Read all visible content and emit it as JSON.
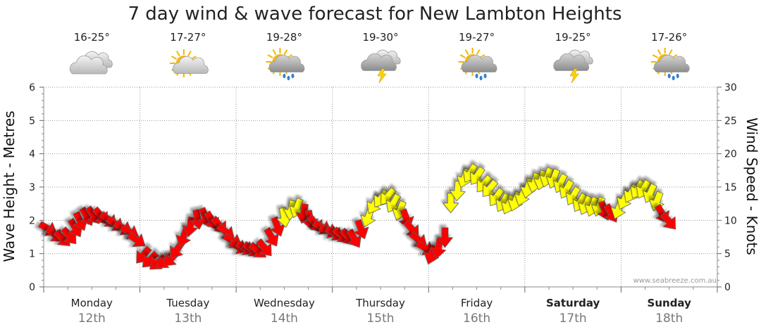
{
  "chart_data": {
    "type": "line",
    "title": "7 day wind & wave forecast for New Lambton Heights",
    "ylabel": "Wave Height - Metres",
    "ylabel_right": "Wind Speed - Knots",
    "ylim": [
      0,
      6
    ],
    "ylim_right": [
      0,
      30
    ],
    "yticks": [
      "0",
      "1",
      "2",
      "3",
      "4",
      "5",
      "6"
    ],
    "yticks_right": [
      "0",
      "5",
      "10",
      "15",
      "20",
      "25",
      "30"
    ],
    "watermark": "www.seabreeze.com.au",
    "days": [
      {
        "name": "Monday",
        "date": "12th",
        "temp": "16-25°",
        "weather": "cloudy",
        "weekend": false
      },
      {
        "name": "Tuesday",
        "date": "13th",
        "temp": "17-27°",
        "weather": "partly-cloudy",
        "weekend": false
      },
      {
        "name": "Wednesday",
        "date": "14th",
        "temp": "19-28°",
        "weather": "shower",
        "weekend": false
      },
      {
        "name": "Thursday",
        "date": "15th",
        "temp": "19-30°",
        "weather": "storm",
        "weekend": false
      },
      {
        "name": "Friday",
        "date": "16th",
        "temp": "19-27°",
        "weather": "shower",
        "weekend": false
      },
      {
        "name": "Saturday",
        "date": "17th",
        "temp": "19-25°",
        "weather": "storm",
        "weekend": true
      },
      {
        "name": "Sunday",
        "date": "18th",
        "temp": "17-26°",
        "weather": "shower",
        "weekend": true
      }
    ],
    "series": [
      {
        "name": "Wind Speed (knots)",
        "x_unit": "days from Monday 00:00",
        "points": [
          [
            0.05,
            8.7,
            300,
            1
          ],
          [
            0.12,
            7.8,
            310,
            1
          ],
          [
            0.2,
            7.2,
            315,
            1
          ],
          [
            0.27,
            7.6,
            320,
            1
          ],
          [
            0.33,
            8.8,
            330,
            1
          ],
          [
            0.38,
            9.8,
            335,
            1
          ],
          [
            0.45,
            10.5,
            330,
            1
          ],
          [
            0.52,
            10.7,
            325,
            1
          ],
          [
            0.6,
            10.6,
            320,
            1
          ],
          [
            0.68,
            10.0,
            310,
            1
          ],
          [
            0.75,
            9.4,
            305,
            1
          ],
          [
            0.83,
            8.8,
            300,
            1
          ],
          [
            0.9,
            8.2,
            300,
            1
          ],
          [
            0.97,
            7.0,
            305,
            1
          ],
          [
            1.03,
            4.7,
            40,
            1
          ],
          [
            1.1,
            4.0,
            45,
            1
          ],
          [
            1.18,
            3.6,
            50,
            1
          ],
          [
            1.25,
            3.8,
            50,
            1
          ],
          [
            1.32,
            4.2,
            45,
            1
          ],
          [
            1.38,
            5.5,
            35,
            1
          ],
          [
            1.45,
            7.4,
            20,
            1
          ],
          [
            1.52,
            9.0,
            10,
            1
          ],
          [
            1.6,
            10.1,
            350,
            1
          ],
          [
            1.68,
            10.4,
            340,
            1
          ],
          [
            1.75,
            9.9,
            330,
            1
          ],
          [
            1.83,
            9.2,
            320,
            1
          ],
          [
            1.9,
            8.2,
            310,
            1
          ],
          [
            1.97,
            6.9,
            300,
            1
          ],
          [
            2.03,
            6.0,
            295,
            1
          ],
          [
            2.1,
            5.8,
            300,
            1
          ],
          [
            2.17,
            5.6,
            305,
            1
          ],
          [
            2.23,
            5.4,
            310,
            1
          ],
          [
            2.3,
            5.8,
            320,
            1
          ],
          [
            2.37,
            7.4,
            330,
            1
          ],
          [
            2.43,
            9.0,
            340,
            1
          ],
          [
            2.5,
            10.4,
            350,
            2
          ],
          [
            2.57,
            11.5,
            10,
            2
          ],
          [
            2.63,
            11.8,
            20,
            2
          ],
          [
            2.7,
            11.0,
            10,
            1
          ],
          [
            2.77,
            10.0,
            350,
            1
          ],
          [
            2.83,
            9.4,
            320,
            1
          ],
          [
            2.9,
            8.9,
            300,
            1
          ],
          [
            2.97,
            8.4,
            290,
            1
          ],
          [
            3.03,
            8.0,
            300,
            1
          ],
          [
            3.1,
            7.7,
            310,
            1
          ],
          [
            3.17,
            7.4,
            320,
            1
          ],
          [
            3.23,
            7.2,
            330,
            1
          ],
          [
            3.3,
            8.6,
            340,
            1
          ],
          [
            3.37,
            10.4,
            20,
            2
          ],
          [
            3.43,
            12.3,
            30,
            2
          ],
          [
            3.5,
            13.2,
            35,
            2
          ],
          [
            3.57,
            13.5,
            40,
            2
          ],
          [
            3.63,
            12.5,
            30,
            2
          ],
          [
            3.7,
            11.4,
            20,
            2
          ],
          [
            3.77,
            10.2,
            340,
            1
          ],
          [
            3.83,
            8.6,
            320,
            1
          ],
          [
            3.9,
            7.0,
            310,
            1
          ],
          [
            3.97,
            5.8,
            300,
            1
          ],
          [
            4.03,
            4.8,
            20,
            1
          ],
          [
            4.1,
            5.7,
            10,
            1
          ],
          [
            4.17,
            7.4,
            0,
            1
          ],
          [
            4.23,
            12.6,
            0,
            2
          ],
          [
            4.3,
            14.4,
            5,
            2
          ],
          [
            4.37,
            16.3,
            20,
            2
          ],
          [
            4.43,
            17.0,
            30,
            2
          ],
          [
            4.5,
            16.6,
            35,
            2
          ],
          [
            4.57,
            15.4,
            40,
            2
          ],
          [
            4.63,
            14.7,
            40,
            2
          ],
          [
            4.7,
            13.4,
            35,
            2
          ],
          [
            4.77,
            12.6,
            30,
            2
          ],
          [
            4.83,
            12.3,
            25,
            2
          ],
          [
            4.9,
            12.8,
            20,
            2
          ],
          [
            4.97,
            13.6,
            20,
            2
          ],
          [
            5.03,
            14.8,
            15,
            2
          ],
          [
            5.1,
            15.6,
            15,
            2
          ],
          [
            5.17,
            16.0,
            15,
            2
          ],
          [
            5.23,
            16.4,
            20,
            2
          ],
          [
            5.3,
            16.2,
            20,
            2
          ],
          [
            5.37,
            15.5,
            25,
            2
          ],
          [
            5.43,
            14.6,
            30,
            2
          ],
          [
            5.5,
            13.6,
            30,
            2
          ],
          [
            5.57,
            12.6,
            30,
            2
          ],
          [
            5.63,
            12.2,
            25,
            2
          ],
          [
            5.7,
            12.0,
            20,
            2
          ],
          [
            5.77,
            12.0,
            20,
            2
          ],
          [
            5.83,
            11.4,
            340,
            1
          ],
          [
            5.9,
            11.0,
            330,
            1
          ],
          [
            5.97,
            11.6,
            20,
            2
          ],
          [
            6.03,
            13.0,
            25,
            2
          ],
          [
            6.1,
            14.0,
            30,
            2
          ],
          [
            6.17,
            14.6,
            30,
            2
          ],
          [
            6.23,
            14.6,
            30,
            2
          ],
          [
            6.3,
            14.0,
            25,
            2
          ],
          [
            6.37,
            12.8,
            20,
            2
          ],
          [
            6.43,
            10.9,
            330,
            1
          ],
          [
            6.5,
            9.8,
            320,
            1
          ]
        ]
      }
    ],
    "legend_colors": {
      "light": "#ff0000",
      "moderate": "#ffff00",
      "outline": "#555555"
    }
  }
}
